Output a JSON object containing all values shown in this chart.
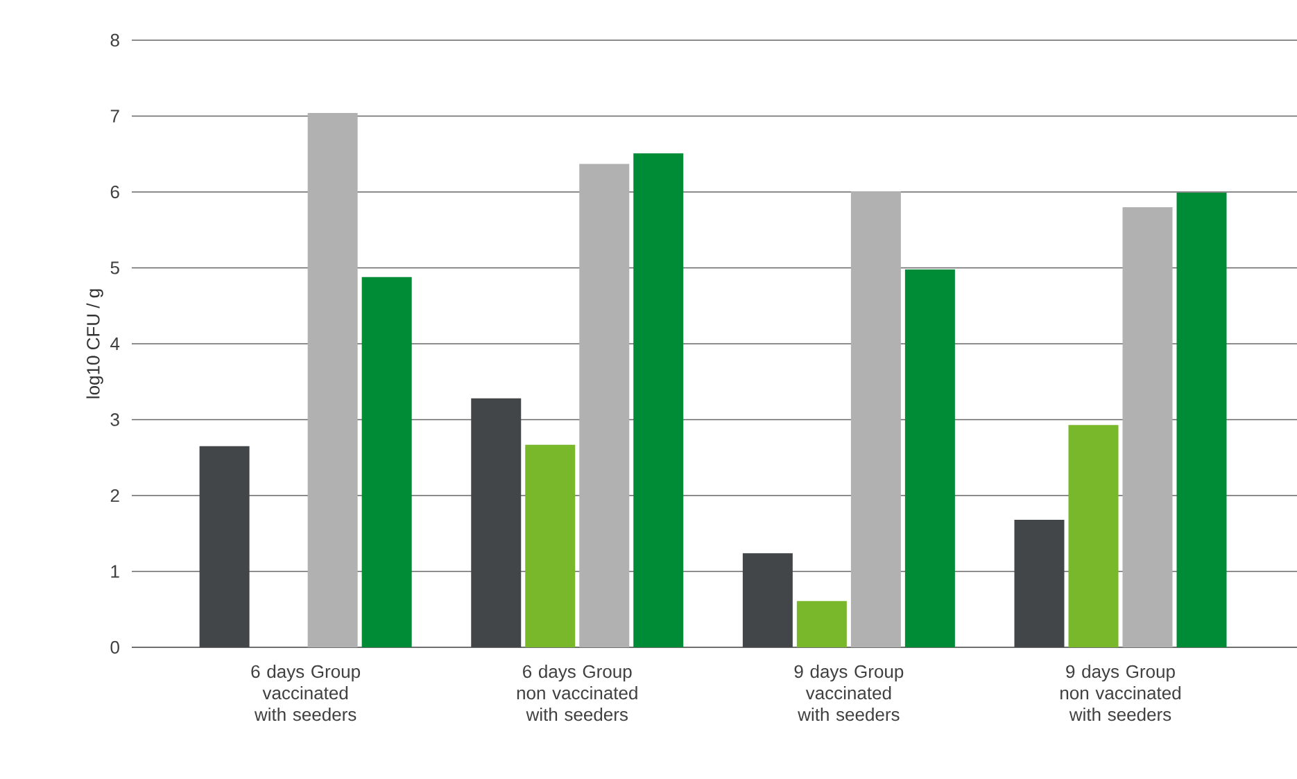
{
  "chart_data": {
    "type": "bar",
    "ylabel": "log10 CFU / g",
    "categories": [
      "6 days Group vaccinated with seeders",
      "6 days Group non vaccinated with seeders",
      "9 days Group vaccinated with seeders",
      "9 days Group non vaccinated with seeders"
    ],
    "series": [
      {
        "color": "#434649",
        "values": [
          2.65,
          3.28,
          1.24,
          1.68
        ]
      },
      {
        "color": "#78b82a",
        "values": [
          0,
          2.67,
          0.61,
          2.93
        ]
      },
      {
        "color": "#b1b1b1",
        "values": [
          7.04,
          6.37,
          6.01,
          5.8
        ]
      },
      {
        "color": "#008c36",
        "values": [
          4.88,
          6.51,
          4.98,
          5.99
        ]
      }
    ],
    "ylim": [
      0,
      8
    ],
    "yticks": [
      0,
      1,
      2,
      3,
      4,
      5,
      6,
      7,
      8
    ],
    "grid": "y"
  }
}
